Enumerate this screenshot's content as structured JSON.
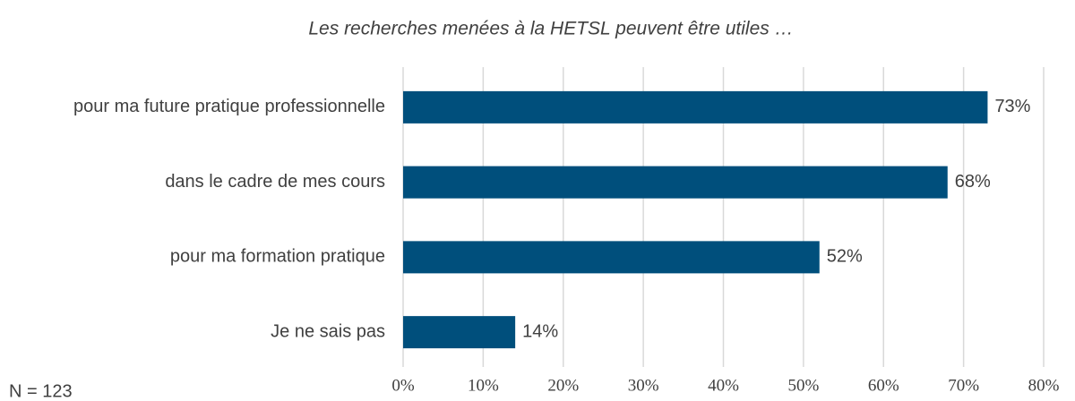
{
  "chart_data": {
    "type": "bar",
    "orientation": "horizontal",
    "title": "Les recherches menées à la HETSL peuvent être utiles …",
    "annotation": "N = 123",
    "categories": [
      "pour ma future pratique professionnelle",
      "dans le cadre de mes cours",
      "pour ma formation pratique",
      "Je ne sais pas"
    ],
    "values": [
      73,
      68,
      52,
      14
    ],
    "value_labels": [
      "73%",
      "68%",
      "52%",
      "14%"
    ],
    "color": "#004f7c",
    "xlim": [
      0,
      80
    ],
    "xticks": [
      {
        "value": 0,
        "label": "0%"
      },
      {
        "value": 10,
        "label": "10%"
      },
      {
        "value": 20,
        "label": "20%"
      },
      {
        "value": 30,
        "label": "30%"
      },
      {
        "value": 40,
        "label": "40%"
      },
      {
        "value": 50,
        "label": "50%"
      },
      {
        "value": 60,
        "label": "60%"
      },
      {
        "value": 70,
        "label": "70%"
      },
      {
        "value": 80,
        "label": "80%"
      }
    ],
    "grid": true
  }
}
